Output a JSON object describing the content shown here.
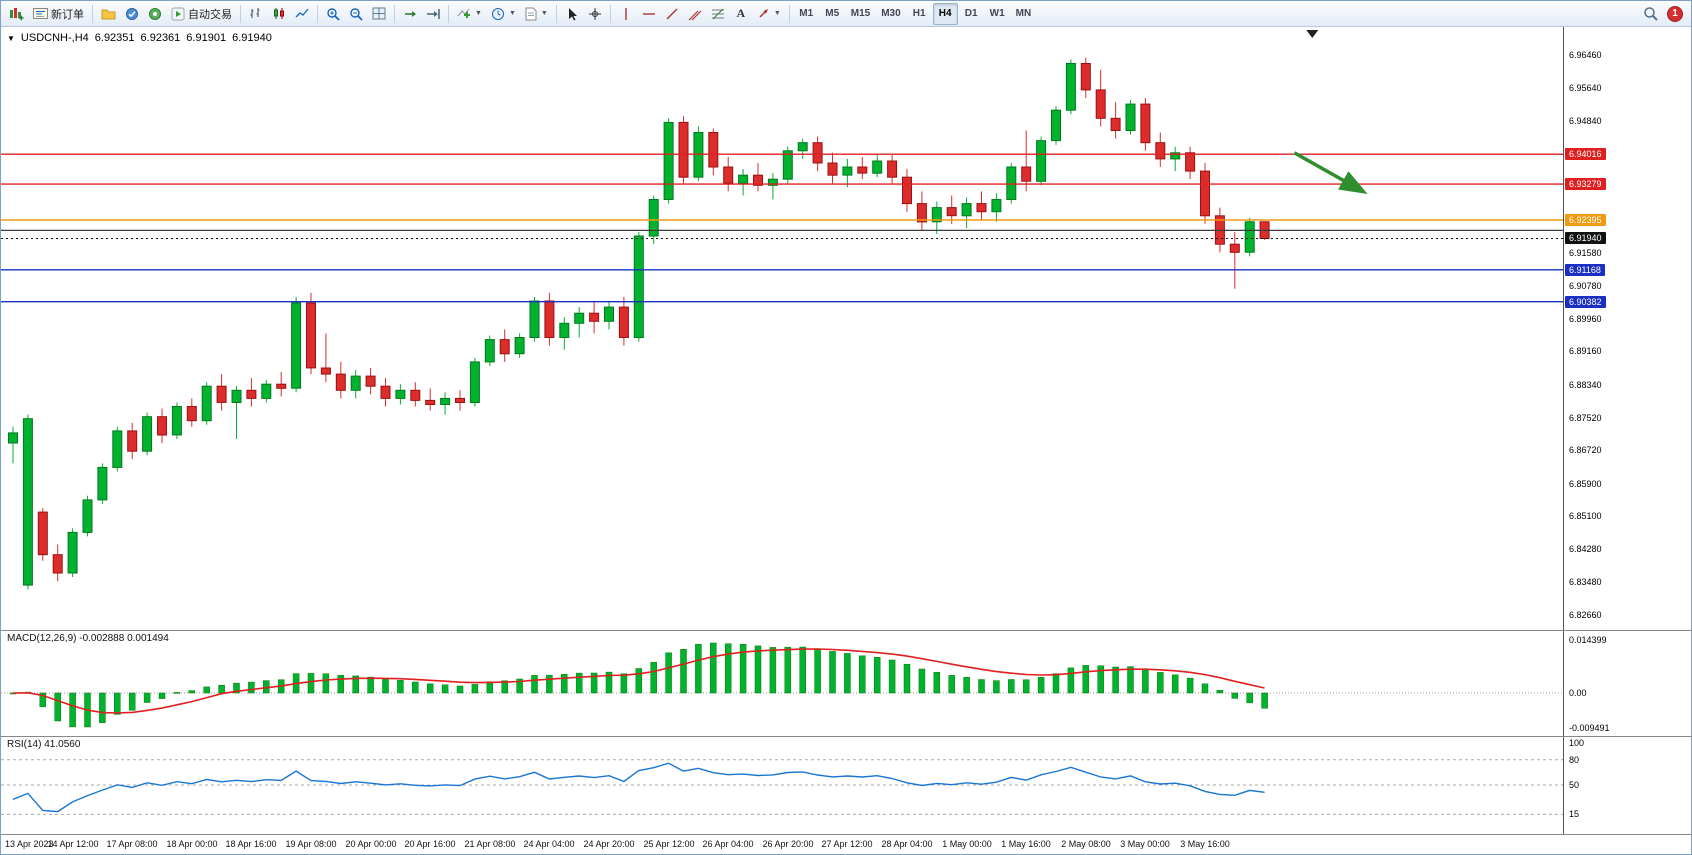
{
  "toolbar": {
    "new_order": "新订单",
    "auto_trading": "自动交易",
    "timeframes": [
      "M1",
      "M5",
      "M15",
      "M30",
      "H1",
      "H4",
      "D1",
      "W1",
      "MN"
    ],
    "active_timeframe": "H4",
    "notification_count": "1"
  },
  "chart_header": {
    "symbol": "USDCNH-,H4",
    "open": "6.92351",
    "high": "6.92361",
    "low": "6.91901",
    "close": "6.91940"
  },
  "price_axis": {
    "labels": [
      6.9646,
      6.9564,
      6.9484,
      6.9158,
      6.9078,
      6.8996,
      6.8916,
      6.8834,
      6.8752,
      6.8672,
      6.859,
      6.851,
      6.8428,
      6.8348,
      6.8266
    ],
    "badges": [
      {
        "text": "6.94016",
        "value": 6.94016,
        "bg": "#e02020",
        "line": "solid",
        "width": 1.4
      },
      {
        "text": "6.93279",
        "value": 6.93279,
        "bg": "#e02020",
        "line": "solid",
        "width": 1.4
      },
      {
        "text": "6.92395",
        "value": 6.92395,
        "bg": "#ef9b0f",
        "line": "solid",
        "width": 1.6
      },
      {
        "text": "6.91940",
        "value": 6.9194,
        "bg": "#111111",
        "line": "dotted",
        "width": 1
      },
      {
        "text": "6.91168",
        "value": 6.91168,
        "bg": "#1a2fc4",
        "line": "solid",
        "width": 1.4
      },
      {
        "text": "6.90382",
        "value": 6.90382,
        "bg": "#1a2fc4",
        "line": "solid",
        "width": 1.4
      }
    ],
    "extra_line": {
      "value": 6.9214,
      "color": "#3c3c3c"
    }
  },
  "macd": {
    "name": "MACD(12,26,9)",
    "main_value": "-0.002888",
    "signal_value": "0.001494",
    "axis_max": "0.014399",
    "axis_zero": "0.00",
    "axis_min": "-0.009491",
    "histogram_color": "#00b22d",
    "signal_color": "#e02020",
    "params": {
      "fast": 12,
      "slow": 26,
      "signal": 9
    }
  },
  "rsi": {
    "name": "RSI(14)",
    "value": "41.0560",
    "period": 14,
    "axis_labels": [
      "100",
      "80",
      "50",
      "15"
    ],
    "levels": [
      80,
      50,
      15
    ],
    "line_color": "#1976d2"
  },
  "chart_data": {
    "type": "candlestick",
    "symbol": "USDCNH",
    "timeframe": "H4",
    "up_color": "#00b22d",
    "down_color": "#dd2c2c",
    "y_range": {
      "top": 6.9715,
      "bottom": 6.8227
    },
    "bars_per_label": 4,
    "shift_marker_bar": 87.2,
    "annotation_arrow": {
      "x1_bar": 86.0,
      "y1_price": 6.9405,
      "x2_bar": 90.5,
      "y2_price": 6.9312,
      "color": "#2f8f2f"
    },
    "x_labels": [
      "13 Apr 2023",
      "14 Apr 12:00",
      "17 Apr 08:00",
      "18 Apr 00:00",
      "18 Apr 16:00",
      "19 Apr 08:00",
      "20 Apr 00:00",
      "20 Apr 16:00",
      "21 Apr 08:00",
      "24 Apr 04:00",
      "24 Apr 20:00",
      "25 Apr 12:00",
      "26 Apr 04:00",
      "26 Apr 20:00",
      "27 Apr 12:00",
      "28 Apr 04:00",
      "1 May 00:00",
      "1 May 16:00",
      "2 May 08:00",
      "3 May 00:00",
      "3 May 16:00"
    ],
    "candles": [
      [
        6.869,
        6.873,
        6.864,
        6.8715
      ],
      [
        6.834,
        6.876,
        6.833,
        6.875
      ],
      [
        6.852,
        6.853,
        6.84,
        6.8415
      ],
      [
        6.8415,
        6.844,
        6.835,
        6.837
      ],
      [
        6.837,
        6.848,
        6.836,
        6.847
      ],
      [
        6.847,
        6.856,
        6.846,
        6.855
      ],
      [
        6.855,
        6.864,
        6.854,
        6.863
      ],
      [
        6.863,
        6.873,
        6.862,
        6.872
      ],
      [
        6.872,
        6.874,
        6.865,
        6.867
      ],
      [
        6.867,
        6.8765,
        6.866,
        6.8755
      ],
      [
        6.8755,
        6.8775,
        6.869,
        6.871
      ],
      [
        6.871,
        6.879,
        6.87,
        6.878
      ],
      [
        6.878,
        6.88,
        6.873,
        6.8745
      ],
      [
        6.8745,
        6.884,
        6.8735,
        6.883
      ],
      [
        6.883,
        6.886,
        6.877,
        6.879
      ],
      [
        6.879,
        6.883,
        6.87,
        6.882
      ],
      [
        6.882,
        6.885,
        6.878,
        6.88
      ],
      [
        6.88,
        6.8845,
        6.879,
        6.8835
      ],
      [
        6.8835,
        6.8865,
        6.8805,
        6.8825
      ],
      [
        6.8825,
        6.905,
        6.8815,
        6.9035
      ],
      [
        6.9035,
        6.906,
        6.886,
        6.8875
      ],
      [
        6.8875,
        6.896,
        6.884,
        6.886
      ],
      [
        6.886,
        6.889,
        6.88,
        6.882
      ],
      [
        6.882,
        6.887,
        6.88,
        6.8855
      ],
      [
        6.8855,
        6.8875,
        6.881,
        6.883
      ],
      [
        6.883,
        6.885,
        6.878,
        6.88
      ],
      [
        6.88,
        6.8835,
        6.8785,
        6.882
      ],
      [
        6.882,
        6.884,
        6.878,
        6.8795
      ],
      [
        6.8795,
        6.8825,
        6.877,
        6.8785
      ],
      [
        6.8785,
        6.8815,
        6.876,
        6.88
      ],
      [
        6.88,
        6.882,
        6.877,
        6.879
      ],
      [
        6.879,
        6.89,
        6.878,
        6.889
      ],
      [
        6.889,
        6.8955,
        6.888,
        6.8945
      ],
      [
        6.8945,
        6.897,
        6.889,
        6.891
      ],
      [
        6.891,
        6.896,
        6.89,
        6.895
      ],
      [
        6.895,
        6.905,
        6.894,
        6.904
      ],
      [
        6.904,
        6.906,
        6.893,
        6.895
      ],
      [
        6.895,
        6.9,
        6.892,
        6.8985
      ],
      [
        6.8985,
        6.9025,
        6.895,
        6.901
      ],
      [
        6.901,
        6.904,
        6.896,
        6.899
      ],
      [
        6.899,
        6.904,
        6.897,
        6.9025
      ],
      [
        6.9025,
        6.905,
        6.893,
        6.895
      ],
      [
        6.895,
        6.921,
        6.894,
        6.92
      ],
      [
        6.92,
        6.93,
        6.918,
        6.929
      ],
      [
        6.929,
        6.949,
        6.928,
        6.948
      ],
      [
        6.948,
        6.9495,
        6.933,
        6.9345
      ],
      [
        6.9345,
        6.947,
        6.9335,
        6.9455
      ],
      [
        6.9455,
        6.9465,
        6.935,
        6.937
      ],
      [
        6.937,
        6.9395,
        6.931,
        6.933
      ],
      [
        6.933,
        6.9365,
        6.93,
        6.935
      ],
      [
        6.935,
        6.938,
        6.931,
        6.9325
      ],
      [
        6.9325,
        6.9355,
        6.929,
        6.934
      ],
      [
        6.934,
        6.942,
        6.933,
        6.941
      ],
      [
        6.941,
        6.944,
        6.939,
        6.943
      ],
      [
        6.943,
        6.9445,
        6.936,
        6.938
      ],
      [
        6.938,
        6.9405,
        6.933,
        6.935
      ],
      [
        6.935,
        6.939,
        6.932,
        6.937
      ],
      [
        6.937,
        6.9395,
        6.934,
        6.9355
      ],
      [
        6.9355,
        6.94,
        6.9345,
        6.9385
      ],
      [
        6.9385,
        6.94,
        6.933,
        6.9345
      ],
      [
        6.9345,
        6.9365,
        6.926,
        6.928
      ],
      [
        6.928,
        6.931,
        6.9215,
        6.9235
      ],
      [
        6.9235,
        6.9285,
        6.9205,
        6.927
      ],
      [
        6.927,
        6.93,
        6.923,
        6.925
      ],
      [
        6.925,
        6.9295,
        6.922,
        6.928
      ],
      [
        6.928,
        6.931,
        6.924,
        6.926
      ],
      [
        6.926,
        6.9305,
        6.9235,
        6.929
      ],
      [
        6.929,
        6.938,
        6.928,
        6.937
      ],
      [
        6.937,
        6.946,
        6.931,
        6.9335
      ],
      [
        6.9335,
        6.9445,
        6.9325,
        6.9435
      ],
      [
        6.9435,
        6.952,
        6.9425,
        6.951
      ],
      [
        6.951,
        6.9635,
        6.95,
        6.9625
      ],
      [
        6.9625,
        6.964,
        6.954,
        6.956
      ],
      [
        6.956,
        6.961,
        6.947,
        6.949
      ],
      [
        6.949,
        6.953,
        6.944,
        6.946
      ],
      [
        6.946,
        6.9535,
        6.945,
        6.9525
      ],
      [
        6.9525,
        6.954,
        6.941,
        6.943
      ],
      [
        6.943,
        6.9455,
        6.937,
        6.939
      ],
      [
        6.939,
        6.942,
        6.936,
        6.9405
      ],
      [
        6.9405,
        6.942,
        6.934,
        6.936
      ],
      [
        6.936,
        6.938,
        6.923,
        6.925
      ],
      [
        6.925,
        6.927,
        6.916,
        6.918
      ],
      [
        6.918,
        6.921,
        6.907,
        6.916
      ],
      [
        6.916,
        6.9245,
        6.915,
        6.9235
      ],
      [
        6.92351,
        6.92361,
        6.91901,
        6.9194
      ]
    ]
  }
}
